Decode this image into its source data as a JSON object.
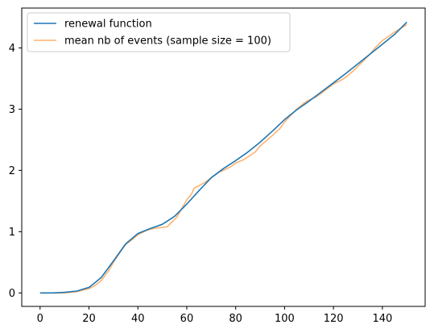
{
  "chart_data": {
    "type": "line",
    "title": "",
    "xlabel": "",
    "ylabel": "",
    "xlim": [
      -7.5,
      157.5
    ],
    "ylim": [
      -0.22,
      4.65
    ],
    "xticks": [
      0,
      20,
      40,
      60,
      80,
      100,
      120,
      140
    ],
    "yticks": [
      0,
      1,
      2,
      3,
      4
    ],
    "grid": false,
    "legend_position": "top-left",
    "series": [
      {
        "name": "renewal function",
        "color": "#1f77b4",
        "x": [
          0,
          5,
          10,
          15,
          20,
          25,
          30,
          35,
          40,
          45,
          50,
          55,
          60,
          65,
          70,
          75,
          80,
          85,
          90,
          95,
          100,
          105,
          110,
          115,
          120,
          125,
          130,
          135,
          140,
          145,
          150
        ],
        "y": [
          0.0,
          0.0,
          0.01,
          0.03,
          0.09,
          0.25,
          0.52,
          0.8,
          0.97,
          1.05,
          1.12,
          1.25,
          1.45,
          1.67,
          1.88,
          2.03,
          2.16,
          2.3,
          2.46,
          2.64,
          2.83,
          2.99,
          3.13,
          3.28,
          3.43,
          3.58,
          3.74,
          3.9,
          4.06,
          4.22,
          4.42
        ]
      },
      {
        "name": "mean nb of events (sample size = 100)",
        "color": "#ff7f0e",
        "x": [
          0,
          5,
          10,
          15,
          20,
          22,
          25,
          28,
          30,
          33,
          35,
          38,
          40,
          43,
          45,
          48,
          50,
          52,
          54,
          56,
          58,
          60,
          62,
          63,
          65,
          68,
          70,
          73,
          75,
          78,
          80,
          83,
          85,
          88,
          90,
          93,
          95,
          98,
          100,
          103,
          105,
          108,
          110,
          113,
          115,
          118,
          120,
          123,
          125,
          128,
          130,
          133,
          135,
          137,
          140,
          143,
          145,
          148,
          150
        ],
        "y": [
          0.0,
          0.0,
          0.0,
          0.02,
          0.07,
          0.11,
          0.2,
          0.36,
          0.5,
          0.68,
          0.79,
          0.88,
          0.95,
          1.01,
          1.04,
          1.06,
          1.07,
          1.08,
          1.16,
          1.24,
          1.38,
          1.52,
          1.62,
          1.71,
          1.75,
          1.82,
          1.88,
          1.97,
          2.0,
          2.06,
          2.12,
          2.17,
          2.22,
          2.3,
          2.4,
          2.5,
          2.57,
          2.68,
          2.79,
          2.92,
          3.0,
          3.1,
          3.15,
          3.2,
          3.26,
          3.35,
          3.41,
          3.47,
          3.52,
          3.62,
          3.7,
          3.82,
          3.9,
          4.0,
          4.12,
          4.2,
          4.26,
          4.33,
          4.38
        ]
      }
    ]
  }
}
